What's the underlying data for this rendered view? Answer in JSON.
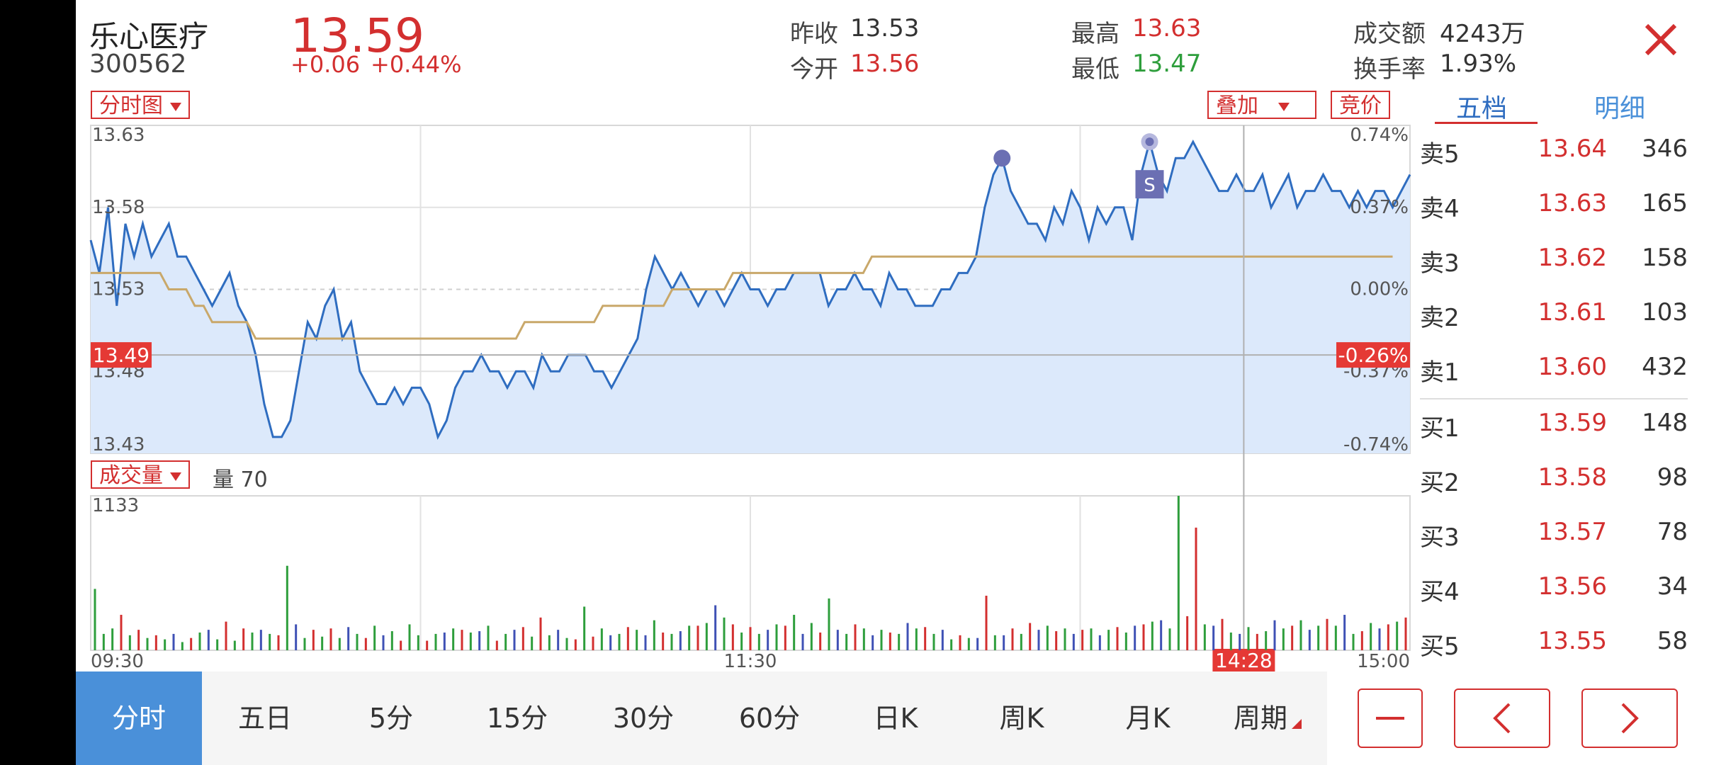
{
  "stock": {
    "name": "乐心医疗",
    "code": "300562",
    "price": "13.59",
    "change": "+0.06",
    "change_pct": "+0.44%"
  },
  "stats": {
    "prev_close_label": "昨收",
    "prev_close": "13.53",
    "open_label": "今开",
    "open": "13.56",
    "high_label": "最高",
    "high": "13.63",
    "low_label": "最低",
    "low": "13.47",
    "amount_label": "成交额",
    "amount": "4243万",
    "turnover_label": "换手率",
    "turnover": "1.93%"
  },
  "chart_controls": {
    "type_dropdown": "分时图",
    "overlay_dropdown": "叠加",
    "auction_button": "竞价",
    "volume_dropdown": "成交量",
    "volume_readout": "量 70"
  },
  "right_tabs": {
    "five_level": "五档",
    "details": "明细"
  },
  "order_book": {
    "asks": [
      {
        "label": "卖5",
        "price": "13.64",
        "vol": "346"
      },
      {
        "label": "卖4",
        "price": "13.63",
        "vol": "165"
      },
      {
        "label": "卖3",
        "price": "13.62",
        "vol": "158"
      },
      {
        "label": "卖2",
        "price": "13.61",
        "vol": "103"
      },
      {
        "label": "卖1",
        "price": "13.60",
        "vol": "432"
      }
    ],
    "bids": [
      {
        "label": "买1",
        "price": "13.59",
        "vol": "148"
      },
      {
        "label": "买2",
        "price": "13.58",
        "vol": "98"
      },
      {
        "label": "买3",
        "price": "13.57",
        "vol": "78"
      },
      {
        "label": "买4",
        "price": "13.56",
        "vol": "34"
      },
      {
        "label": "买5",
        "price": "13.55",
        "vol": "58"
      }
    ]
  },
  "periods": [
    "分时",
    "五日",
    "5分",
    "15分",
    "30分",
    "60分",
    "日K",
    "周K",
    "月K",
    "周期"
  ],
  "colors": {
    "up": "#d32f2f",
    "down": "#2e9e3c",
    "line": "#2f6dc0",
    "avg": "#c9a86a",
    "fill": "#dce9fb",
    "active": "#4a90d9"
  },
  "chart_data": {
    "type": "line",
    "price_axis_labels": [
      "13.63",
      "13.58",
      "13.53",
      "13.48",
      "13.43"
    ],
    "pct_axis_labels": [
      "0.74%",
      "0.37%",
      "0.00%",
      "-0.37%",
      "-0.74%"
    ],
    "time_labels": [
      "09:30",
      "11:30",
      "15:00"
    ],
    "volume_max_label": "1133",
    "cursor_price": "13.49",
    "cursor_pct": "-0.26%",
    "cursor_time": "14:28",
    "marker_label": "S",
    "ylim": [
      13.43,
      13.63
    ],
    "price": [
      13.56,
      13.54,
      13.58,
      13.52,
      13.57,
      13.55,
      13.57,
      13.55,
      13.56,
      13.57,
      13.55,
      13.55,
      13.54,
      13.53,
      13.52,
      13.53,
      13.54,
      13.52,
      13.51,
      13.49,
      13.46,
      13.44,
      13.44,
      13.45,
      13.48,
      13.51,
      13.5,
      13.52,
      13.53,
      13.5,
      13.51,
      13.48,
      13.47,
      13.46,
      13.46,
      13.47,
      13.46,
      13.47,
      13.47,
      13.46,
      13.44,
      13.45,
      13.47,
      13.48,
      13.48,
      13.49,
      13.48,
      13.48,
      13.47,
      13.48,
      13.48,
      13.47,
      13.49,
      13.48,
      13.48,
      13.49,
      13.49,
      13.49,
      13.48,
      13.48,
      13.47,
      13.48,
      13.49,
      13.5,
      13.53,
      13.55,
      13.54,
      13.53,
      13.54,
      13.53,
      13.52,
      13.53,
      13.53,
      13.52,
      13.53,
      13.54,
      13.53,
      13.53,
      13.52,
      13.53,
      13.53,
      13.54,
      13.54,
      13.54,
      13.54,
      13.52,
      13.53,
      13.53,
      13.54,
      13.53,
      13.53,
      13.52,
      13.54,
      13.53,
      13.53,
      13.52,
      13.52,
      13.52,
      13.53,
      13.53,
      13.54,
      13.54,
      13.55,
      13.58,
      13.6,
      13.61,
      13.59,
      13.58,
      13.57,
      13.57,
      13.56,
      13.58,
      13.57,
      13.59,
      13.58,
      13.56,
      13.58,
      13.57,
      13.58,
      13.58,
      13.56,
      13.6,
      13.62,
      13.6,
      13.59,
      13.61,
      13.61,
      13.62,
      13.61,
      13.6,
      13.59,
      13.59,
      13.6,
      13.59,
      13.59,
      13.6,
      13.58,
      13.59,
      13.6,
      13.58,
      13.59,
      13.59,
      13.6,
      13.59,
      13.59,
      13.58,
      13.59,
      13.58,
      13.59,
      13.59,
      13.58,
      13.59,
      13.6
    ],
    "avg": [
      13.54,
      13.54,
      13.54,
      13.54,
      13.54,
      13.54,
      13.54,
      13.54,
      13.54,
      13.53,
      13.53,
      13.53,
      13.52,
      13.52,
      13.51,
      13.51,
      13.51,
      13.51,
      13.51,
      13.5,
      13.5,
      13.5,
      13.5,
      13.5,
      13.5,
      13.5,
      13.5,
      13.5,
      13.5,
      13.5,
      13.5,
      13.5,
      13.5,
      13.5,
      13.5,
      13.5,
      13.5,
      13.5,
      13.5,
      13.5,
      13.5,
      13.5,
      13.5,
      13.5,
      13.5,
      13.5,
      13.5,
      13.5,
      13.5,
      13.5,
      13.51,
      13.51,
      13.51,
      13.51,
      13.51,
      13.51,
      13.51,
      13.51,
      13.51,
      13.52,
      13.52,
      13.52,
      13.52,
      13.52,
      13.52,
      13.52,
      13.52,
      13.53,
      13.53,
      13.53,
      13.53,
      13.53,
      13.53,
      13.53,
      13.54,
      13.54,
      13.54,
      13.54,
      13.54,
      13.54,
      13.54,
      13.54,
      13.54,
      13.54,
      13.54,
      13.54,
      13.54,
      13.54,
      13.54,
      13.54,
      13.55,
      13.55,
      13.55,
      13.55,
      13.55,
      13.55,
      13.55,
      13.55,
      13.55,
      13.55,
      13.55,
      13.55,
      13.55,
      13.55,
      13.55,
      13.55,
      13.55,
      13.55,
      13.55,
      13.55,
      13.55,
      13.55,
      13.55,
      13.55,
      13.55,
      13.55,
      13.55,
      13.55,
      13.55,
      13.55,
      13.55,
      13.55,
      13.55,
      13.55,
      13.55,
      13.55,
      13.55,
      13.55,
      13.55,
      13.55,
      13.55,
      13.55,
      13.55,
      13.55,
      13.55,
      13.55,
      13.55,
      13.55,
      13.55,
      13.55,
      13.55,
      13.55,
      13.55,
      13.55,
      13.55,
      13.55,
      13.55,
      13.55,
      13.55,
      13.55,
      13.55
    ],
    "volume_max": 1133,
    "volume": [
      450,
      120,
      160,
      260,
      110,
      150,
      90,
      110,
      80,
      120,
      60,
      90,
      130,
      150,
      80,
      210,
      70,
      160,
      130,
      150,
      120,
      110,
      620,
      190,
      90,
      150,
      100,
      160,
      90,
      170,
      120,
      90,
      180,
      110,
      140,
      70,
      190,
      110,
      70,
      120,
      130,
      160,
      150,
      130,
      140,
      180,
      70,
      120,
      150,
      170,
      100,
      240,
      110,
      150,
      90,
      80,
      320,
      100,
      160,
      110,
      120,
      170,
      150,
      110,
      220,
      130,
      120,
      140,
      180,
      180,
      200,
      330,
      240,
      190,
      130,
      170,
      120,
      150,
      190,
      180,
      260,
      120,
      200,
      130,
      380,
      150,
      120,
      190,
      160,
      110,
      150,
      130,
      120,
      200,
      160,
      170,
      120,
      150,
      80,
      110,
      90,
      90,
      400,
      110,
      110,
      160,
      120,
      200,
      150,
      180,
      140,
      160,
      120,
      150,
      160,
      110,
      150,
      170,
      130,
      180,
      190,
      210,
      220,
      160,
      1133,
      250,
      900,
      190,
      180,
      230,
      130,
      120,
      170,
      120,
      140,
      220,
      160,
      180,
      220,
      150,
      180,
      230,
      180,
      260,
      120,
      140,
      200,
      160,
      190,
      210,
      240
    ],
    "volume_color": [
      "g",
      "g",
      "g",
      "r",
      "g",
      "r",
      "g",
      "r",
      "g",
      "b",
      "g",
      "r",
      "g",
      "b",
      "g",
      "r",
      "g",
      "r",
      "g",
      "b",
      "g",
      "r",
      "g",
      "b",
      "g",
      "r",
      "g",
      "r",
      "g",
      "b",
      "g",
      "r",
      "g",
      "b",
      "g",
      "r",
      "g",
      "g",
      "r",
      "g",
      "b",
      "g",
      "r",
      "g",
      "b",
      "g",
      "r",
      "g",
      "b",
      "r",
      "g",
      "r",
      "g",
      "b",
      "g",
      "r",
      "g",
      "r",
      "g",
      "b",
      "g",
      "r",
      "g",
      "b",
      "g",
      "r",
      "g",
      "b",
      "g",
      "r",
      "g",
      "b",
      "g",
      "r",
      "g",
      "r",
      "g",
      "b",
      "g",
      "r",
      "g",
      "b",
      "g",
      "r",
      "g",
      "b",
      "g",
      "r",
      "g",
      "b",
      "g",
      "r",
      "g",
      "b",
      "g",
      "r",
      "g",
      "b",
      "g",
      "r",
      "g",
      "b",
      "r",
      "g",
      "b",
      "r",
      "g",
      "r",
      "b",
      "g",
      "r",
      "g",
      "b",
      "r",
      "g",
      "b",
      "g",
      "r",
      "g",
      "b",
      "r",
      "g",
      "b",
      "g",
      "g",
      "r",
      "r",
      "g",
      "b",
      "r",
      "g",
      "b",
      "g",
      "r",
      "g",
      "b",
      "g",
      "r",
      "g",
      "b",
      "g",
      "r",
      "g",
      "b",
      "g",
      "r",
      "g",
      "b",
      "r",
      "g",
      "r"
    ]
  }
}
